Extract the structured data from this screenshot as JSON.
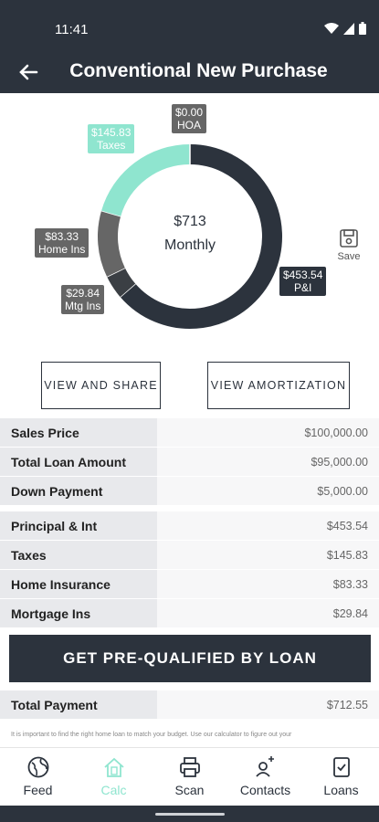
{
  "status": {
    "time": "11:41"
  },
  "header": {
    "title": "Conventional New Purchase"
  },
  "chart_data": {
    "type": "pie",
    "center": {
      "amount": "$713",
      "period": "Monthly"
    },
    "slices": [
      {
        "name": "P&I",
        "value": 453.54,
        "label": "$453.54",
        "color": "#2c333d"
      },
      {
        "name": "Mtg Ins",
        "value": 29.84,
        "label": "$29.84",
        "color": "#3b3f44"
      },
      {
        "name": "Home Ins",
        "value": 83.33,
        "label": "$83.33",
        "color": "#666666"
      },
      {
        "name": "Taxes",
        "value": 145.83,
        "label": "$145.83",
        "color": "#8fe5cf"
      },
      {
        "name": "HOA",
        "value": 0.0,
        "label": "$0.00",
        "color": "#666666"
      }
    ]
  },
  "save_label": "Save",
  "buttons": {
    "view_share": "VIEW AND SHARE",
    "view_amort": "VIEW AMORTIZATION"
  },
  "loan_table": [
    {
      "label": "Sales Price",
      "value": "$100,000.00"
    },
    {
      "label": "Total Loan Amount",
      "value": "$95,000.00"
    },
    {
      "label": "Down Payment",
      "value": "$5,000.00"
    }
  ],
  "payment_table": [
    {
      "label": "Principal & Int",
      "value": "$453.54"
    },
    {
      "label": "Taxes",
      "value": "$145.83"
    },
    {
      "label": "Home Insurance",
      "value": "$83.33"
    },
    {
      "label": "Mortgage Ins",
      "value": "$29.84"
    }
  ],
  "cta_label": "GET PRE-QUALIFIED BY LOAN",
  "total": {
    "label": "Total Payment",
    "value": "$712.55"
  },
  "disclaimer": "It is important to find the right home loan to match your budget. Use our calculator to figure out your",
  "nav": [
    {
      "label": "Feed",
      "icon": "globe-icon"
    },
    {
      "label": "Calc",
      "icon": "home-calc-icon"
    },
    {
      "label": "Scan",
      "icon": "printer-icon"
    },
    {
      "label": "Contacts",
      "icon": "contacts-icon"
    },
    {
      "label": "Loans",
      "icon": "clipboard-check-icon"
    }
  ]
}
